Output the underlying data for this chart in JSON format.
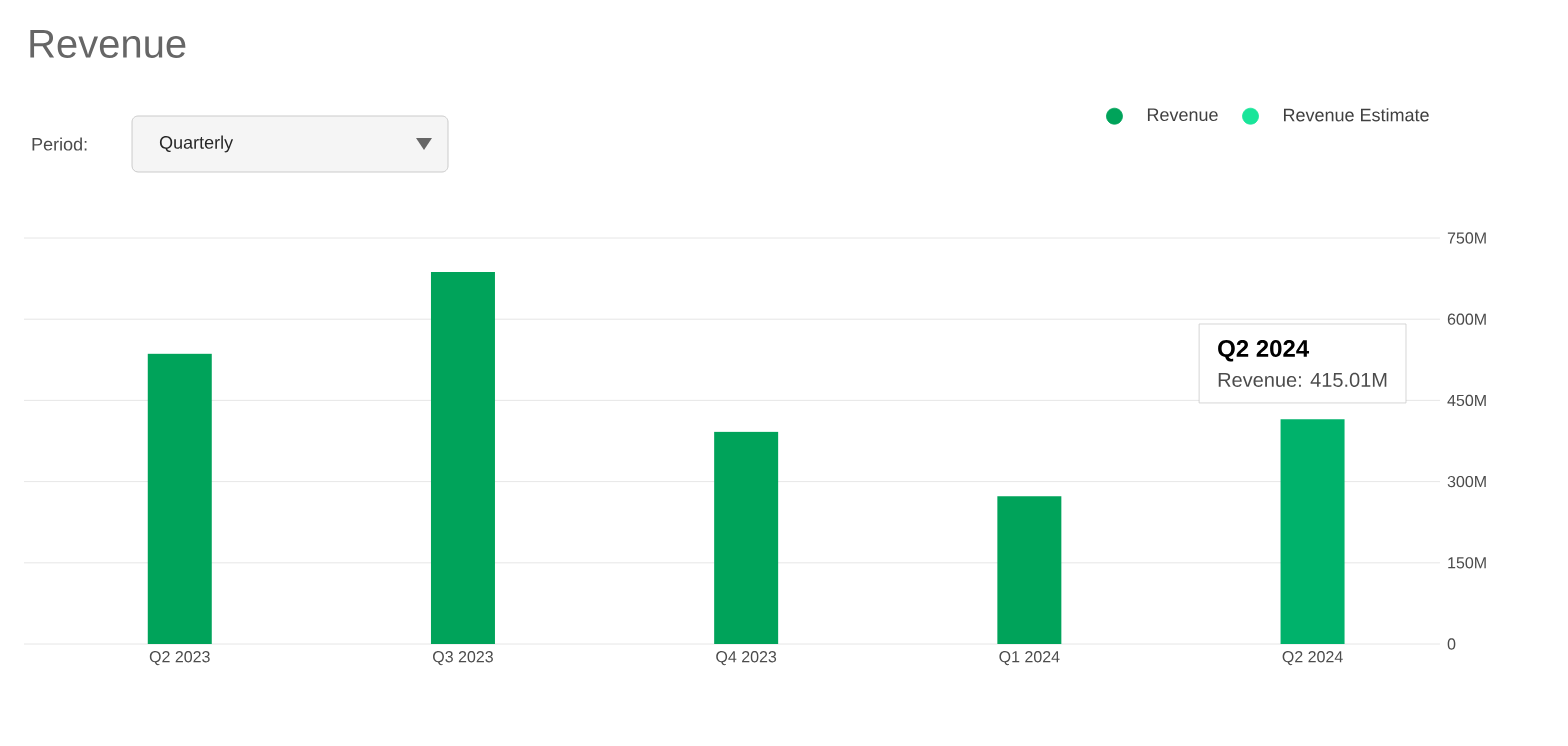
{
  "chart_data": {
    "type": "bar",
    "title": "Revenue",
    "categories": [
      "Q2 2023",
      "Q3 2023",
      "Q4 2023",
      "Q1 2024",
      "Q2 2024"
    ],
    "series": [
      {
        "name": "Revenue",
        "color": "#00a35a",
        "colors": [
          "#00a35a",
          "#00a35a",
          "#00a35a",
          "#00a35a",
          "#00b26b"
        ],
        "values": [
          536,
          687,
          392,
          273,
          415.01
        ]
      },
      {
        "name": "Revenue Estimate",
        "color": "#19e59a",
        "values": [
          null,
          null,
          null,
          null,
          null
        ]
      }
    ],
    "ylim": [
      0,
      750
    ],
    "yticks": [
      0,
      {
        "value": 150,
        "label": "150M"
      },
      {
        "value": 300,
        "label": "300M"
      },
      {
        "value": 450,
        "label": "450M"
      },
      {
        "value": 600,
        "label": "600M"
      },
      {
        "value": 750,
        "label": "750M"
      }
    ],
    "grid": "y",
    "legend": "top right",
    "annotations": [
      "Period:",
      "Quarterly",
      {
        "text": "Q2 2024",
        "x": "Q2 2024",
        "y": 415.01
      },
      "Revenue:   415.01M"
    ]
  }
}
